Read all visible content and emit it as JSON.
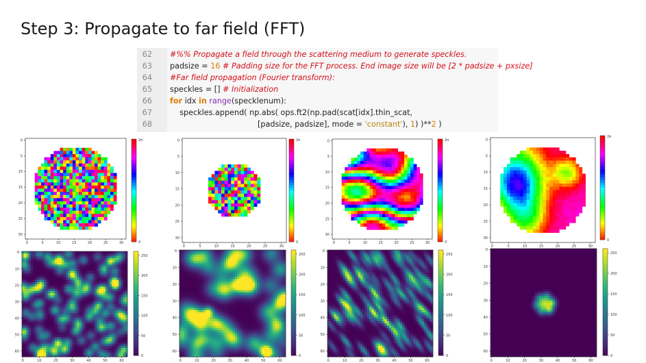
{
  "slide": {
    "title": "Step 3: Propagate to far field (FFT)"
  },
  "code": {
    "lines": [
      {
        "n": "62",
        "parts": [
          {
            "t": "#%% Propagate a field through the scattering medium to generate speckles.",
            "c": "cmt"
          }
        ]
      },
      {
        "n": "63",
        "parts": [
          {
            "t": "padsize = ",
            "c": ""
          },
          {
            "t": "16",
            "c": "num"
          },
          {
            "t": " # Padding size for the FFT process. End image size will be [2 * padsize + pxsize]",
            "c": "cmt"
          }
        ]
      },
      {
        "n": "64",
        "parts": [
          {
            "t": "#Far field propagation (Fourier transform):",
            "c": "cmt"
          }
        ]
      },
      {
        "n": "65",
        "parts": [
          {
            "t": "speckles = [] ",
            "c": ""
          },
          {
            "t": "# Initialization",
            "c": "cmt"
          }
        ]
      },
      {
        "n": "66",
        "parts": [
          {
            "t": "for",
            "c": "kw"
          },
          {
            "t": " idx ",
            "c": ""
          },
          {
            "t": "in",
            "c": "kw"
          },
          {
            "t": " ",
            "c": ""
          },
          {
            "t": "range",
            "c": "bi"
          },
          {
            "t": "(specklenum):",
            "c": ""
          }
        ]
      },
      {
        "n": "67",
        "parts": [
          {
            "t": "    speckles.append( np.abs( ops.ft2(np.pad(scat[idx].thin_scat,",
            "c": ""
          }
        ]
      },
      {
        "n": "68",
        "parts": [
          {
            "t": "                                    [padsize, padsize], mode = ",
            "c": ""
          },
          {
            "t": "'constant'",
            "c": "str"
          },
          {
            "t": "), ",
            "c": ""
          },
          {
            "t": "1",
            "c": "num"
          },
          {
            "t": ") )**",
            "c": ""
          },
          {
            "t": "2",
            "c": "num"
          },
          {
            "t": " )",
            "c": ""
          }
        ]
      }
    ]
  },
  "chart_data": [
    {
      "type": "heatmap",
      "title": "",
      "kind": "phase",
      "pattern": "random-1px",
      "aperture_radius": 13.5,
      "x_ticks": [
        "0",
        "5",
        "10",
        "15",
        "20",
        "25",
        "30"
      ],
      "y_ticks": [
        "0",
        "5",
        "10",
        "15",
        "20",
        "25",
        "30"
      ],
      "colorbar_labels": [
        "2π",
        "0"
      ],
      "colormap": "hsv"
    },
    {
      "type": "heatmap",
      "title": "",
      "kind": "phase",
      "pattern": "random-1px",
      "aperture_radius": 8.5,
      "x_ticks": [
        "0",
        "5",
        "10",
        "15",
        "20",
        "25",
        "30"
      ],
      "y_ticks": [
        "0",
        "5",
        "10",
        "15",
        "20",
        "25",
        "30"
      ],
      "colorbar_labels": [
        "2π",
        "0"
      ],
      "colormap": "hsv"
    },
    {
      "type": "heatmap",
      "title": "",
      "kind": "phase",
      "pattern": "smooth-medium",
      "aperture_radius": 13.5,
      "x_ticks": [
        "0",
        "5",
        "10",
        "15",
        "20",
        "25",
        "30"
      ],
      "y_ticks": [
        "0",
        "5",
        "10",
        "15",
        "20",
        "25",
        "30"
      ],
      "colorbar_labels": [
        "2π",
        "0"
      ],
      "colormap": "hsv"
    },
    {
      "type": "heatmap",
      "title": "",
      "kind": "phase",
      "pattern": "smooth-large",
      "aperture_radius": 13.5,
      "x_ticks": [
        "0",
        "5",
        "10",
        "15",
        "20",
        "25",
        "30"
      ],
      "y_ticks": [
        "0",
        "5",
        "10",
        "15",
        "20",
        "25",
        "30"
      ],
      "colorbar_labels": [
        "2π",
        "0"
      ],
      "colormap": "hsv"
    },
    {
      "type": "heatmap",
      "title": "",
      "kind": "speckle",
      "pattern": "fine",
      "x_ticks": [
        "0",
        "10",
        "20",
        "30",
        "40",
        "50",
        "60"
      ],
      "y_ticks": [
        "0",
        "10",
        "20",
        "30",
        "40",
        "50",
        "60"
      ],
      "colorbar_ticks": [
        "250",
        "200",
        "150",
        "100",
        "50",
        "0"
      ],
      "colormap": "viridis"
    },
    {
      "type": "heatmap",
      "title": "",
      "kind": "speckle",
      "pattern": "coarse",
      "x_ticks": [
        "0",
        "10",
        "20",
        "30",
        "40",
        "50",
        "60"
      ],
      "y_ticks": [
        "0",
        "10",
        "20",
        "30",
        "40",
        "50",
        "60"
      ],
      "colorbar_ticks": [
        "250",
        "200",
        "150",
        "100",
        "50",
        "0"
      ],
      "colormap": "viridis"
    },
    {
      "type": "heatmap",
      "title": "",
      "kind": "speckle",
      "pattern": "streaked",
      "x_ticks": [
        "0",
        "10",
        "20",
        "30",
        "40",
        "50",
        "60"
      ],
      "y_ticks": [
        "0",
        "10",
        "20",
        "30",
        "40",
        "50",
        "60"
      ],
      "colorbar_ticks": [
        "250",
        "200",
        "150",
        "100",
        "50",
        "0"
      ],
      "colormap": "viridis"
    },
    {
      "type": "heatmap",
      "title": "",
      "kind": "speckle",
      "pattern": "central-spot",
      "x_ticks": [
        "0",
        "10",
        "20",
        "30",
        "40",
        "50",
        "60"
      ],
      "y_ticks": [
        "0",
        "10",
        "20",
        "30",
        "40",
        "50",
        "60"
      ],
      "colorbar_ticks": [
        "250",
        "200",
        "150",
        "100",
        "50",
        "0"
      ],
      "colormap": "viridis"
    }
  ]
}
